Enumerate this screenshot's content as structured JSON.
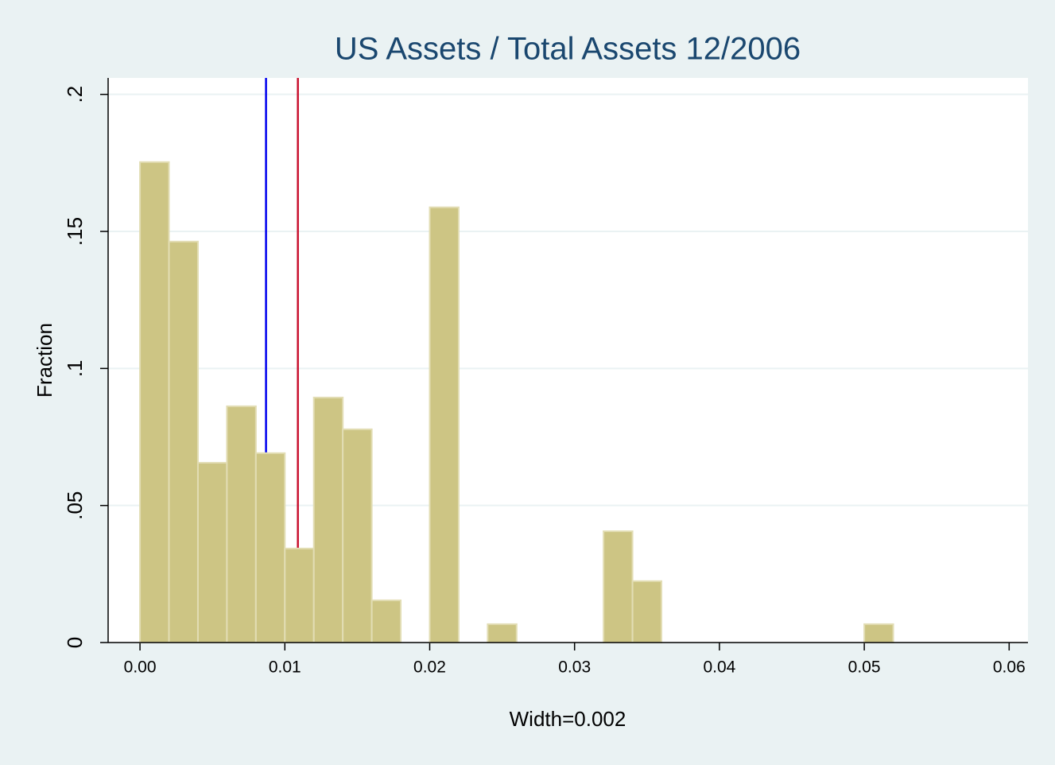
{
  "chart_data": {
    "type": "histogram",
    "title": "US Assets / Total Assets 12/2006",
    "x_label": "Width=0.002",
    "y_label": "Fraction",
    "bins": [
      0,
      0.002,
      0.004,
      0.006,
      0.008,
      0.01,
      0.012,
      0.014,
      0.016,
      0.018,
      0.02,
      0.022,
      0.024,
      0.026,
      0.028,
      0.03,
      0.032,
      0.034,
      0.036,
      0.038,
      0.04,
      0.042,
      0.044,
      0.046,
      0.048,
      0.05,
      0.052
    ],
    "values": [
      0.1753,
      0.1463,
      0.0656,
      0.0862,
      0.0691,
      0.0343,
      0.0894,
      0.0778,
      0.0154,
      0,
      0.1588,
      0,
      0.0067,
      0,
      0,
      0,
      0.0406,
      0.0224,
      0,
      0,
      0,
      0,
      0,
      0,
      0,
      0.0067
    ],
    "color": "#cdc584",
    "reference_lines": [
      {
        "value": 0.0087,
        "color": "#0000ee"
      },
      {
        "value": 0.0109,
        "color": "#c8102e"
      }
    ],
    "xlim": [
      -0.0022,
      0.0613
    ],
    "ylim": [
      0,
      0.206
    ],
    "xticks": [
      {
        "value": 0,
        "label": "0.00"
      },
      0.01,
      0.02,
      0.03,
      0.04,
      0.05,
      0.06
    ],
    "yticks": [
      0,
      {
        "value": 0.05,
        "label": ".05"
      },
      {
        "value": 0.1,
        "label": ".1"
      },
      {
        "value": 0.15,
        "label": ".15"
      },
      {
        "value": 0.2,
        "label": ".2"
      }
    ],
    "grid": true
  }
}
